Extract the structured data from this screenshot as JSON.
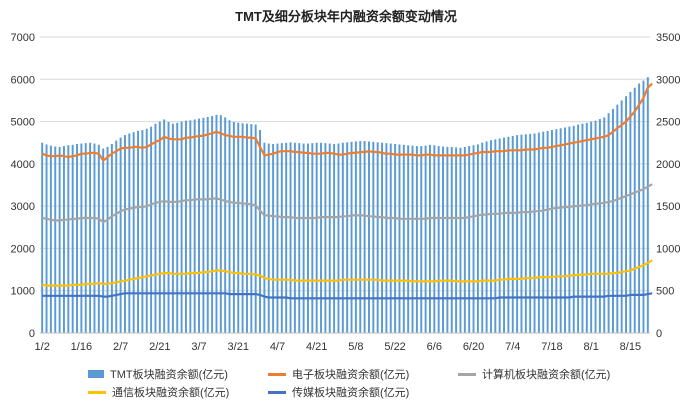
{
  "chart_data": {
    "type": "bar+line",
    "title": "TMT及细分板块年内融资余额变动情况",
    "left_axis": {
      "min": 0,
      "max": 7000,
      "ticks": [
        0,
        1000,
        2000,
        3000,
        4000,
        5000,
        6000,
        7000
      ]
    },
    "right_axis": {
      "min": 0,
      "max": 3500,
      "ticks": [
        0,
        500,
        1000,
        1500,
        2000,
        2500,
        3000,
        3500
      ]
    },
    "x_tick_labels": [
      "1/2",
      "1/16",
      "2/7",
      "2/21",
      "3/7",
      "3/21",
      "4/7",
      "4/21",
      "5/8",
      "5/22",
      "6/6",
      "6/20",
      "7/4",
      "7/18",
      "8/1",
      "8/15"
    ],
    "x_tick_index": [
      0,
      9,
      18,
      27,
      36,
      45,
      54,
      63,
      72,
      81,
      90,
      99,
      108,
      117,
      126,
      135
    ],
    "grid": true,
    "series": [
      {
        "name": "TMT板块融资余额(亿元)",
        "type": "bar",
        "axis": "left",
        "color": "#5b9bd5",
        "values": [
          4500,
          4460,
          4430,
          4410,
          4400,
          4420,
          4440,
          4450,
          4470,
          4480,
          4490,
          4500,
          4480,
          4450,
          4360,
          4400,
          4470,
          4550,
          4620,
          4680,
          4720,
          4750,
          4780,
          4800,
          4830,
          4880,
          4950,
          5000,
          5050,
          4990,
          4950,
          4970,
          5000,
          5020,
          5030,
          5050,
          5070,
          5090,
          5110,
          5130,
          5160,
          5150,
          5100,
          5030,
          4990,
          4970,
          4960,
          4950,
          4940,
          4930,
          4800,
          4500,
          4480,
          4470,
          4480,
          4490,
          4500,
          4510,
          4500,
          4490,
          4480,
          4480,
          4490,
          4500,
          4500,
          4490,
          4480,
          4470,
          4480,
          4500,
          4510,
          4520,
          4530,
          4540,
          4540,
          4530,
          4520,
          4510,
          4500,
          4490,
          4480,
          4470,
          4460,
          4450,
          4440,
          4430,
          4420,
          4420,
          4430,
          4450,
          4440,
          4420,
          4410,
          4400,
          4400,
          4390,
          4380,
          4400,
          4420,
          4440,
          4460,
          4500,
          4530,
          4560,
          4580,
          4600,
          4620,
          4640,
          4660,
          4680,
          4690,
          4700,
          4710,
          4720,
          4740,
          4760,
          4780,
          4800,
          4820,
          4840,
          4860,
          4880,
          4900,
          4930,
          4950,
          4970,
          5000,
          5020,
          5060,
          5100,
          5200,
          5300,
          5400,
          5500,
          5600,
          5700,
          5800,
          5900,
          5970,
          6050
        ],
        "interpolated": true
      },
      {
        "name": "电子板块融资余额(亿元)",
        "type": "line",
        "axis": "right",
        "color": "#ed7d31",
        "values": [
          2120,
          2100,
          2090,
          2090,
          2100,
          2090,
          2080,
          2090,
          2100,
          2120,
          2120,
          2130,
          2130,
          2120,
          2040,
          2080,
          2120,
          2150,
          2180,
          2190,
          2190,
          2200,
          2200,
          2190,
          2200,
          2230,
          2260,
          2280,
          2320,
          2300,
          2290,
          2290,
          2290,
          2310,
          2310,
          2320,
          2330,
          2330,
          2350,
          2360,
          2380,
          2360,
          2340,
          2330,
          2320,
          2320,
          2320,
          2310,
          2310,
          2300,
          2200,
          2100,
          2110,
          2120,
          2140,
          2150,
          2150,
          2150,
          2140,
          2140,
          2130,
          2130,
          2120,
          2120,
          2120,
          2130,
          2130,
          2120,
          2110,
          2110,
          2120,
          2130,
          2130,
          2140,
          2140,
          2150,
          2140,
          2140,
          2130,
          2120,
          2120,
          2110,
          2110,
          2110,
          2110,
          2110,
          2100,
          2100,
          2110,
          2110,
          2100,
          2100,
          2100,
          2100,
          2100,
          2100,
          2100,
          2100,
          2110,
          2120,
          2130,
          2140,
          2140,
          2140,
          2150,
          2150,
          2150,
          2160,
          2160,
          2160,
          2160,
          2170,
          2170,
          2170,
          2180,
          2190,
          2190,
          2200,
          2210,
          2220,
          2230,
          2240,
          2250,
          2260,
          2270,
          2280,
          2290,
          2300,
          2310,
          2320,
          2340,
          2380,
          2420,
          2460,
          2500,
          2560,
          2620,
          2700,
          2780,
          2900,
          2950
        ],
        "interpolated": true
      },
      {
        "name": "计算机板块融资余额(亿元)",
        "type": "line",
        "axis": "right",
        "color": "#a5a5a5",
        "values": [
          1360,
          1350,
          1340,
          1330,
          1330,
          1340,
          1340,
          1350,
          1350,
          1360,
          1360,
          1360,
          1360,
          1350,
          1310,
          1340,
          1380,
          1410,
          1440,
          1460,
          1470,
          1480,
          1490,
          1490,
          1500,
          1520,
          1540,
          1550,
          1560,
          1550,
          1550,
          1550,
          1560,
          1570,
          1570,
          1580,
          1580,
          1580,
          1580,
          1590,
          1590,
          1580,
          1560,
          1550,
          1540,
          1540,
          1530,
          1530,
          1520,
          1510,
          1450,
          1390,
          1390,
          1380,
          1380,
          1370,
          1370,
          1370,
          1360,
          1360,
          1360,
          1360,
          1360,
          1360,
          1370,
          1370,
          1370,
          1370,
          1370,
          1380,
          1380,
          1390,
          1390,
          1390,
          1390,
          1380,
          1380,
          1370,
          1370,
          1360,
          1360,
          1360,
          1350,
          1350,
          1350,
          1350,
          1350,
          1350,
          1350,
          1360,
          1360,
          1360,
          1360,
          1360,
          1360,
          1360,
          1360,
          1360,
          1370,
          1380,
          1390,
          1400,
          1400,
          1410,
          1410,
          1410,
          1420,
          1420,
          1420,
          1420,
          1430,
          1430,
          1430,
          1440,
          1440,
          1450,
          1460,
          1470,
          1480,
          1480,
          1490,
          1490,
          1500,
          1500,
          1510,
          1510,
          1520,
          1530,
          1530,
          1540,
          1550,
          1560,
          1580,
          1600,
          1620,
          1640,
          1660,
          1680,
          1700,
          1730,
          1760
        ],
        "interpolated": true
      },
      {
        "name": "通信板块融资余额(亿元)",
        "type": "line",
        "axis": "right",
        "color": "#ffc000",
        "values": [
          570,
          560,
          560,
          560,
          560,
          560,
          560,
          570,
          570,
          570,
          580,
          580,
          580,
          590,
          580,
          580,
          590,
          600,
          610,
          620,
          630,
          640,
          650,
          660,
          670,
          680,
          690,
          700,
          710,
          710,
          700,
          700,
          700,
          700,
          710,
          710,
          710,
          720,
          720,
          730,
          740,
          740,
          730,
          720,
          710,
          710,
          700,
          700,
          700,
          690,
          680,
          650,
          640,
          630,
          630,
          630,
          630,
          630,
          620,
          620,
          620,
          620,
          620,
          620,
          620,
          620,
          620,
          620,
          620,
          630,
          630,
          630,
          630,
          630,
          630,
          630,
          630,
          630,
          620,
          620,
          620,
          620,
          620,
          620,
          620,
          610,
          610,
          610,
          610,
          610,
          610,
          620,
          620,
          620,
          620,
          610,
          610,
          610,
          610,
          610,
          610,
          620,
          620,
          620,
          620,
          630,
          630,
          640,
          640,
          640,
          640,
          650,
          650,
          650,
          660,
          660,
          660,
          660,
          670,
          670,
          670,
          680,
          680,
          690,
          690,
          690,
          700,
          700,
          700,
          700,
          700,
          710,
          710,
          720,
          730,
          740,
          760,
          780,
          800,
          830,
          860
        ],
        "interpolated": true
      },
      {
        "name": "传媒板块融资余额(亿元)",
        "type": "line",
        "axis": "right",
        "color": "#4472c4",
        "values": [
          440,
          440,
          440,
          440,
          440,
          440,
          440,
          440,
          440,
          440,
          440,
          440,
          440,
          440,
          430,
          430,
          440,
          450,
          460,
          470,
          470,
          470,
          470,
          470,
          470,
          470,
          470,
          470,
          470,
          470,
          470,
          470,
          470,
          470,
          470,
          470,
          470,
          470,
          470,
          470,
          470,
          470,
          470,
          460,
          460,
          460,
          460,
          460,
          460,
          460,
          450,
          430,
          420,
          420,
          420,
          420,
          420,
          410,
          410,
          410,
          410,
          410,
          410,
          410,
          410,
          410,
          410,
          410,
          410,
          410,
          410,
          410,
          410,
          410,
          410,
          410,
          410,
          410,
          410,
          410,
          410,
          410,
          410,
          410,
          410,
          410,
          410,
          410,
          410,
          410,
          410,
          410,
          410,
          410,
          410,
          410,
          410,
          410,
          410,
          410,
          410,
          410,
          410,
          410,
          410,
          420,
          420,
          420,
          420,
          420,
          420,
          420,
          420,
          420,
          420,
          420,
          420,
          420,
          420,
          420,
          420,
          420,
          430,
          430,
          430,
          430,
          430,
          430,
          430,
          430,
          440,
          440,
          440,
          440,
          440,
          450,
          450,
          450,
          450,
          460,
          470
        ],
        "interpolated": true
      }
    ]
  }
}
